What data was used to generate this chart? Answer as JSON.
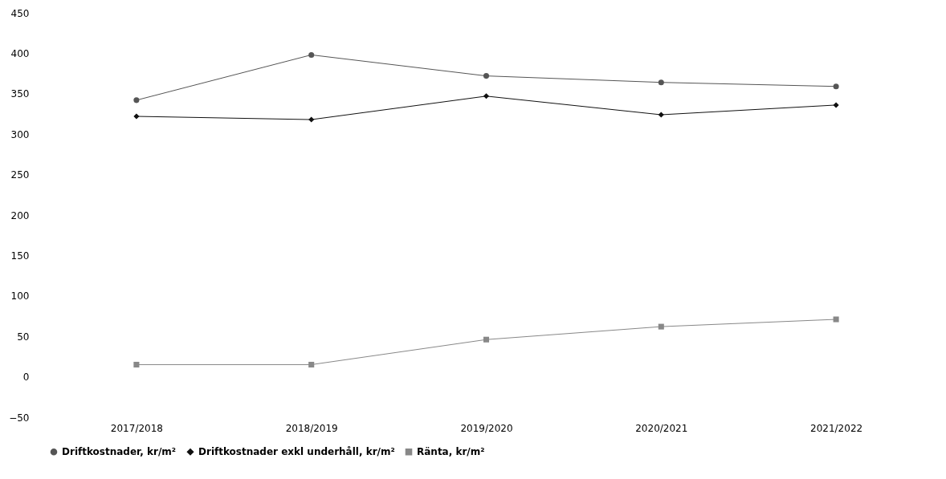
{
  "chart_data": {
    "type": "line",
    "categories": [
      "2017/2018",
      "2018/2019",
      "2019/2020",
      "2020/2021",
      "2021/2022"
    ],
    "series": [
      {
        "name": "Driftkostnader, kr/m²",
        "color": "#555555",
        "marker": "circle",
        "values": [
          342,
          398,
          372,
          364,
          359
        ]
      },
      {
        "name": "Driftkostnader exkl underhåll, kr/m²",
        "color": "#111111",
        "marker": "diamond",
        "values": [
          322,
          318,
          347,
          324,
          336
        ]
      },
      {
        "name": "Ränta, kr/m²",
        "color": "#888888",
        "marker": "square",
        "values": [
          15,
          15,
          46,
          62,
          71
        ]
      }
    ],
    "ylim": [
      -50,
      450
    ],
    "yticks": [
      -50,
      0,
      50,
      100,
      150,
      200,
      250,
      300,
      350,
      400,
      450
    ],
    "grid": false,
    "legend": "bottom",
    "line_style": "solid"
  }
}
